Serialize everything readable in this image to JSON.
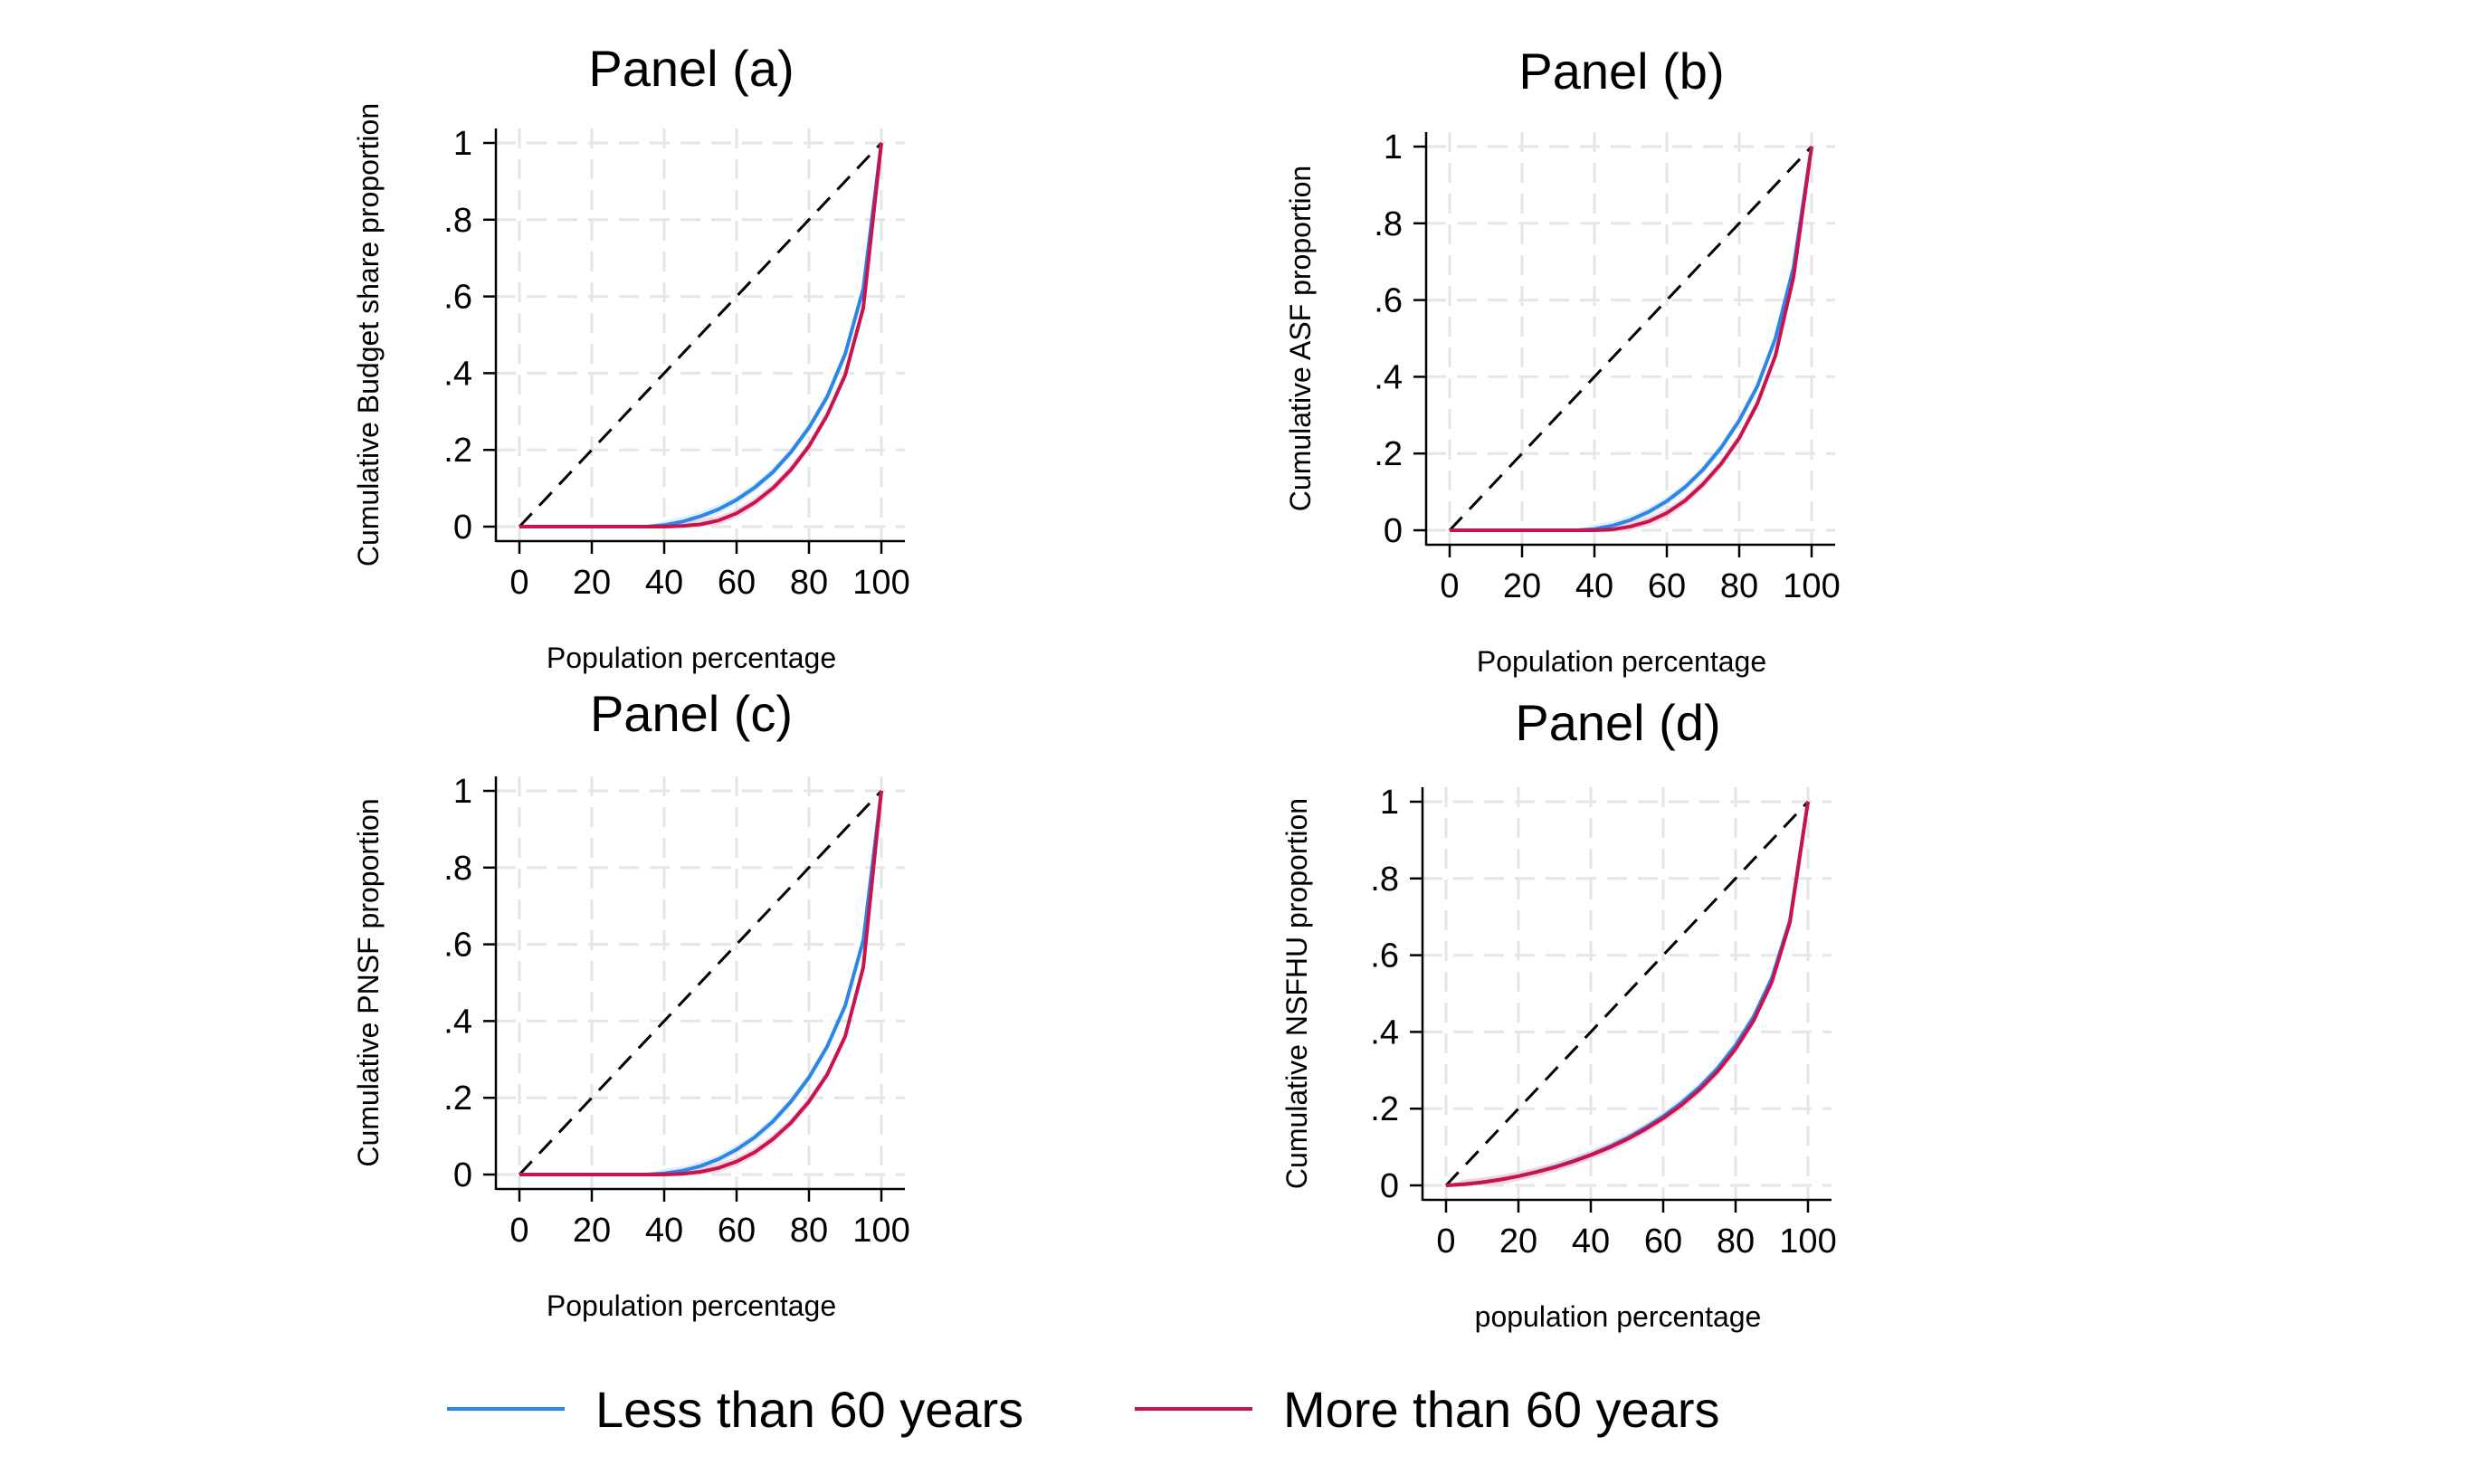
{
  "colors": {
    "less_than_60": "#2a86e8",
    "more_than_60": "#c8134f",
    "equality_line": "#000000",
    "grid": "#e6e6e6",
    "ci_band": "#f2c9d6"
  },
  "legend": {
    "position": "bottom",
    "items": [
      {
        "label": "Less than 60 years",
        "color": "#2a86e8"
      },
      {
        "label": "More than 60 years",
        "color": "#c8134f"
      }
    ]
  },
  "chart_data": [
    {
      "type": "line",
      "title": "Panel (a)",
      "xlabel": "Population percentage",
      "ylabel": "Cumulative Budget share proportion",
      "xlim": [
        0,
        100
      ],
      "ylim": [
        0,
        1
      ],
      "xticks": [
        0,
        20,
        40,
        60,
        80,
        100
      ],
      "xtick_labels": [
        "0",
        "20",
        "40",
        "60",
        "80",
        "100"
      ],
      "yticks": [
        0,
        0.2,
        0.4,
        0.6,
        0.8,
        1
      ],
      "ytick_labels": [
        "0",
        ".2",
        ".4",
        ".6",
        ".8",
        "1"
      ],
      "grid": true,
      "equality_line": [
        [
          0,
          0
        ],
        [
          100,
          1
        ]
      ],
      "series": [
        {
          "name": "Less than 60 years",
          "color": "#2a86e8",
          "x": [
            0,
            35,
            40,
            45,
            50,
            55,
            60,
            65,
            70,
            75,
            80,
            85,
            90,
            95,
            100
          ],
          "y": [
            0,
            0,
            0.004,
            0.013,
            0.027,
            0.045,
            0.07,
            0.102,
            0.142,
            0.194,
            0.258,
            0.338,
            0.45,
            0.62,
            1
          ]
        },
        {
          "name": "More than 60 years",
          "color": "#c8134f",
          "x": [
            0,
            40,
            45,
            50,
            55,
            60,
            65,
            70,
            75,
            80,
            85,
            90,
            95,
            100
          ],
          "y": [
            0,
            0,
            0.002,
            0.006,
            0.016,
            0.035,
            0.063,
            0.1,
            0.148,
            0.21,
            0.29,
            0.395,
            0.57,
            1
          ]
        }
      ]
    },
    {
      "type": "line",
      "title": "Panel (b)",
      "xlabel": "Population percentage",
      "ylabel": "Cumulative ASF proportion",
      "xlim": [
        0,
        100
      ],
      "ylim": [
        0,
        1
      ],
      "xticks": [
        0,
        20,
        40,
        60,
        80,
        100
      ],
      "xtick_labels": [
        "0",
        "20",
        "40",
        "60",
        "80",
        "100"
      ],
      "yticks": [
        0,
        0.2,
        0.4,
        0.6,
        0.8,
        1
      ],
      "ytick_labels": [
        "0",
        ".2",
        ".4",
        ".6",
        ".8",
        "1"
      ],
      "grid": true,
      "equality_line": [
        [
          0,
          0
        ],
        [
          100,
          1
        ]
      ],
      "series": [
        {
          "name": "Less than 60 years",
          "color": "#2a86e8",
          "x": [
            0,
            35,
            40,
            45,
            50,
            55,
            60,
            65,
            70,
            75,
            80,
            85,
            90,
            95,
            100
          ],
          "y": [
            0,
            0,
            0.003,
            0.012,
            0.027,
            0.048,
            0.076,
            0.112,
            0.158,
            0.215,
            0.286,
            0.375,
            0.5,
            0.685,
            1
          ]
        },
        {
          "name": "More than 60 years",
          "color": "#c8134f",
          "x": [
            0,
            40,
            45,
            50,
            55,
            60,
            65,
            70,
            75,
            80,
            85,
            90,
            95,
            100
          ],
          "y": [
            0,
            0,
            0.002,
            0.01,
            0.023,
            0.045,
            0.077,
            0.12,
            0.173,
            0.24,
            0.33,
            0.455,
            0.66,
            1
          ]
        }
      ]
    },
    {
      "type": "line",
      "title": "Panel (c)",
      "xlabel": "Population percentage",
      "ylabel": "Cumulative PNSF proportion",
      "xlim": [
        0,
        100
      ],
      "ylim": [
        0,
        1
      ],
      "xticks": [
        0,
        20,
        40,
        60,
        80,
        100
      ],
      "xtick_labels": [
        "0",
        "20",
        "40",
        "60",
        "80",
        "100"
      ],
      "yticks": [
        0,
        0.2,
        0.4,
        0.6,
        0.8,
        1
      ],
      "ytick_labels": [
        "0",
        ".2",
        ".4",
        ".6",
        ".8",
        "1"
      ],
      "grid": true,
      "equality_line": [
        [
          0,
          0
        ],
        [
          100,
          1
        ]
      ],
      "series": [
        {
          "name": "Less than 60 years",
          "color": "#2a86e8",
          "x": [
            0,
            35,
            40,
            45,
            50,
            55,
            60,
            65,
            70,
            75,
            80,
            85,
            90,
            95,
            100
          ],
          "y": [
            0,
            0,
            0.003,
            0.01,
            0.022,
            0.04,
            0.065,
            0.097,
            0.138,
            0.19,
            0.253,
            0.333,
            0.44,
            0.61,
            1
          ]
        },
        {
          "name": "More than 60 years",
          "color": "#c8134f",
          "x": [
            0,
            40,
            45,
            50,
            55,
            60,
            65,
            70,
            75,
            80,
            85,
            90,
            95,
            100
          ],
          "y": [
            0,
            0,
            0.002,
            0.007,
            0.017,
            0.034,
            0.058,
            0.092,
            0.135,
            0.19,
            0.26,
            0.36,
            0.54,
            1
          ]
        }
      ]
    },
    {
      "type": "line",
      "title": "Panel (d)",
      "xlabel": "population percentage",
      "ylabel": "Cumulative NSFHU proportion",
      "xlim": [
        0,
        100
      ],
      "ylim": [
        0,
        1
      ],
      "xticks": [
        0,
        20,
        40,
        60,
        80,
        100
      ],
      "xtick_labels": [
        "0",
        "20",
        "40",
        "60",
        "80",
        "100"
      ],
      "yticks": [
        0,
        0.2,
        0.4,
        0.6,
        0.8,
        1
      ],
      "ytick_labels": [
        "0",
        ".2",
        ".4",
        ".6",
        ".8",
        "1"
      ],
      "grid": true,
      "equality_line": [
        [
          0,
          0
        ],
        [
          100,
          1
        ]
      ],
      "series": [
        {
          "name": "Less than 60 years",
          "color": "#2a86e8",
          "x": [
            0,
            5,
            10,
            15,
            20,
            25,
            30,
            35,
            40,
            45,
            50,
            55,
            60,
            65,
            70,
            75,
            80,
            85,
            90,
            95,
            100
          ],
          "y": [
            0,
            0.003,
            0.008,
            0.015,
            0.024,
            0.035,
            0.048,
            0.063,
            0.08,
            0.1,
            0.123,
            0.15,
            0.18,
            0.215,
            0.256,
            0.305,
            0.365,
            0.44,
            0.54,
            0.69,
            1
          ]
        },
        {
          "name": "More than 60 years",
          "color": "#c8134f",
          "x": [
            0,
            5,
            10,
            15,
            20,
            25,
            30,
            35,
            40,
            45,
            50,
            55,
            60,
            65,
            70,
            75,
            80,
            85,
            90,
            95,
            100
          ],
          "y": [
            0,
            0.003,
            0.008,
            0.015,
            0.024,
            0.035,
            0.047,
            0.062,
            0.079,
            0.098,
            0.12,
            0.146,
            0.175,
            0.209,
            0.249,
            0.297,
            0.356,
            0.43,
            0.53,
            0.685,
            1
          ]
        }
      ]
    }
  ]
}
